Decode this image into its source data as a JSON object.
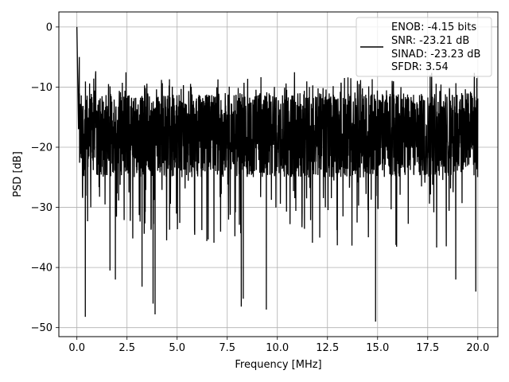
{
  "chart_data": {
    "type": "line",
    "xlabel": "Frequency [MHz]",
    "ylabel": "PSD [dB]",
    "xlim": [
      -0.9,
      21.0
    ],
    "ylim": [
      -51.5,
      2.5
    ],
    "x_ticks": [
      0.0,
      2.5,
      5.0,
      7.5,
      10.0,
      12.5,
      15.0,
      17.5,
      20.0
    ],
    "x_tick_labels": [
      "0.0",
      "2.5",
      "5.0",
      "7.5",
      "10.0",
      "12.5",
      "15.0",
      "17.5",
      "20.0"
    ],
    "y_ticks": [
      0,
      -10,
      -20,
      -30,
      -40,
      -50
    ],
    "y_tick_labels": [
      "0",
      "−10",
      "−20",
      "−30",
      "−40",
      "−50"
    ],
    "grid": true,
    "legend_position": "top-right",
    "series": [
      {
        "color": "#000000",
        "x_range": [
          0.0,
          20.0
        ],
        "typical_range_db": [
          -25,
          -11
        ],
        "peak_points": [
          {
            "x": 0.0,
            "y": 0.0
          },
          {
            "x": 0.08,
            "y": -17
          },
          {
            "x": 0.12,
            "y": -5
          }
        ],
        "deep_nulls": [
          {
            "x": 0.42,
            "y": -48.2
          },
          {
            "x": 1.65,
            "y": -40.5
          },
          {
            "x": 1.92,
            "y": -42.0
          },
          {
            "x": 3.25,
            "y": -43.2
          },
          {
            "x": 3.8,
            "y": -46.0
          },
          {
            "x": 3.9,
            "y": -47.8
          },
          {
            "x": 8.2,
            "y": -46.5
          },
          {
            "x": 8.3,
            "y": -45.2
          },
          {
            "x": 9.45,
            "y": -47.0
          },
          {
            "x": 14.9,
            "y": -49.0
          },
          {
            "x": 18.9,
            "y": -42.0
          },
          {
            "x": 19.9,
            "y": -44.0
          }
        ]
      }
    ],
    "legend_lines": [
      "ENOB: -4.15 bits",
      "SNR: -23.21 dB",
      "SINAD: -23.23 dB",
      "SFDR: 3.54"
    ]
  }
}
